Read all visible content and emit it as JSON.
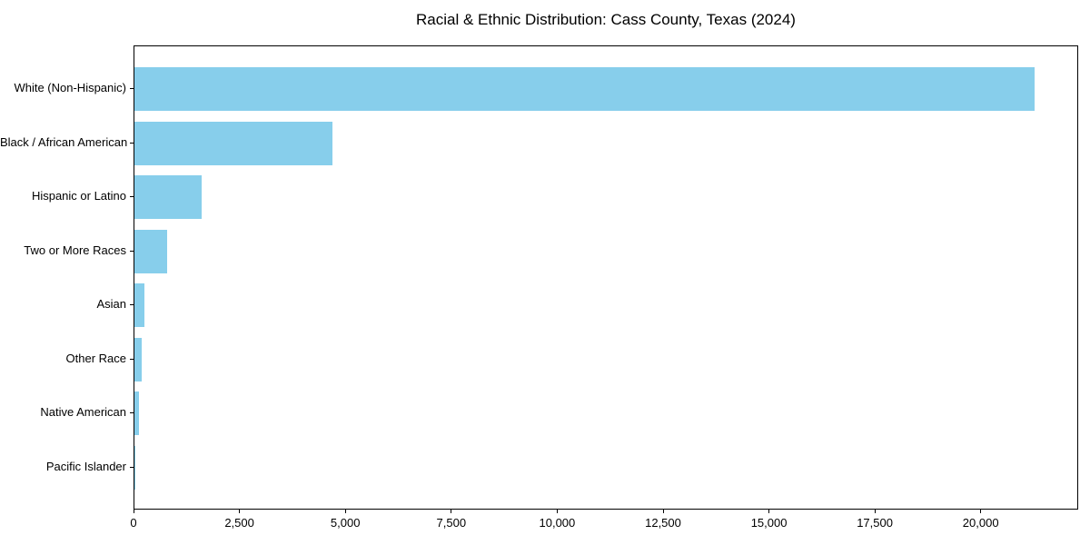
{
  "chart_data": {
    "type": "bar",
    "orientation": "horizontal",
    "title": "Racial & Ethnic Distribution: Cass County, Texas (2024)",
    "categories": [
      "White (Non-Hispanic)",
      "Black / African American",
      "Hispanic or Latino",
      "Two or More Races",
      "Asian",
      "Other Race",
      "Native American",
      "Pacific Islander"
    ],
    "values": [
      21250,
      4680,
      1580,
      775,
      235,
      180,
      110,
      15
    ],
    "xlabel": "",
    "ylabel": "",
    "xlim": [
      0,
      22300
    ],
    "x_ticks": [
      0,
      2500,
      5000,
      7500,
      10000,
      12500,
      15000,
      17500,
      20000
    ],
    "x_tick_labels": [
      "0",
      "2,500",
      "5,000",
      "7,500",
      "10,000",
      "12,500",
      "15,000",
      "17,500",
      "20,000"
    ],
    "bar_color": "#87CEEB",
    "axis_color": "#000000",
    "background_color": "#FFFFFF",
    "grid": false,
    "legend": "none"
  }
}
